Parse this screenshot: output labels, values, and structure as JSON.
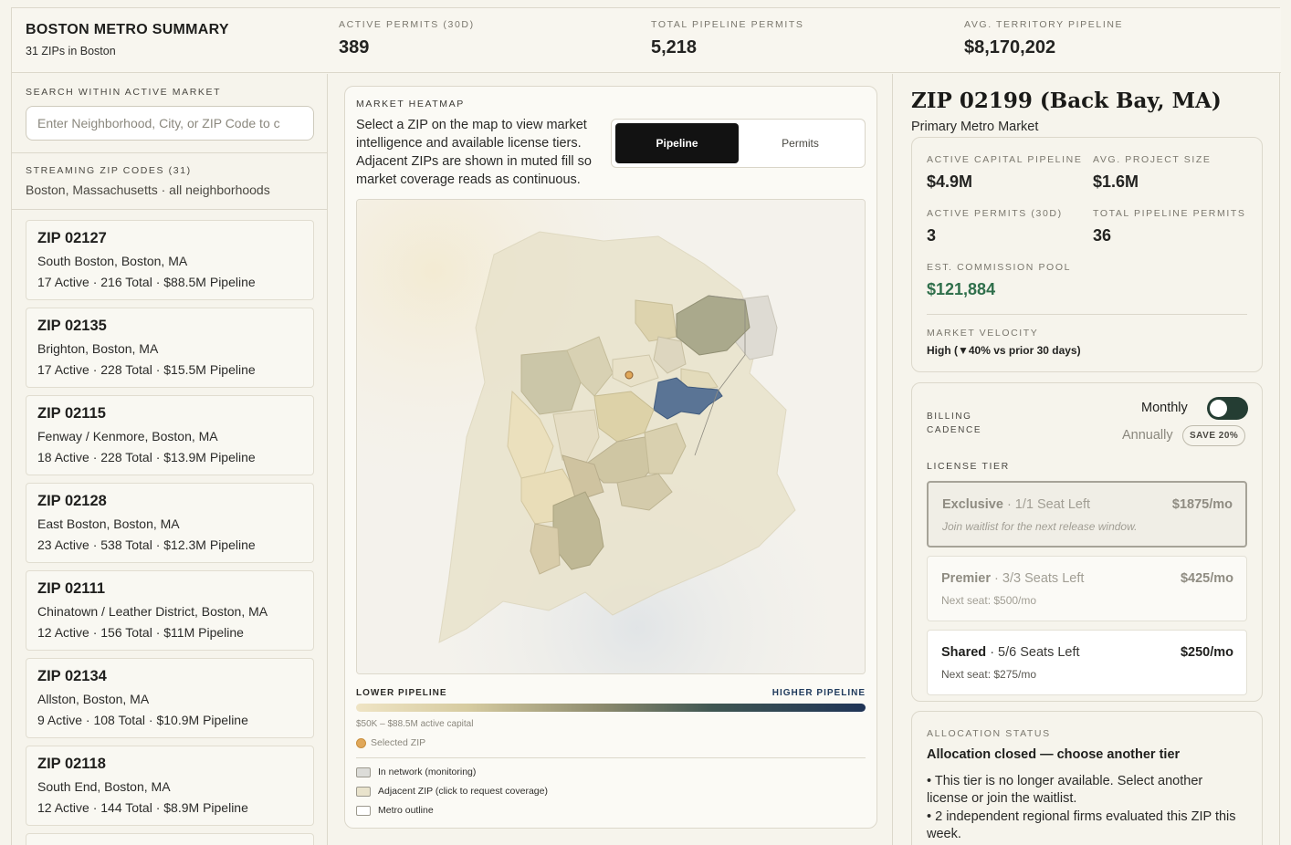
{
  "summary": {
    "title": "BOSTON METRO SUMMARY",
    "subtitle": "31 ZIPs in Boston",
    "stats": [
      {
        "label": "ACTIVE PERMITS (30D)",
        "value": "389"
      },
      {
        "label": "TOTAL PIPELINE PERMITS",
        "value": "5,218"
      },
      {
        "label": "AVG. TERRITORY PIPELINE",
        "value": "$8,170,202"
      }
    ]
  },
  "search": {
    "label": "SEARCH WITHIN ACTIVE MARKET",
    "placeholder": "Enter Neighborhood, City, or ZIP Code to c"
  },
  "streaming": {
    "label": "STREAMING ZIP CODES (31)",
    "subtitle": "Boston, Massachusetts · all neighborhoods"
  },
  "zip_list": [
    {
      "title": "ZIP 02127",
      "location": "South Boston, Boston, MA",
      "stats": "17 Active · 216 Total · $88.5M Pipeline"
    },
    {
      "title": "ZIP 02135",
      "location": "Brighton, Boston, MA",
      "stats": "17 Active · 228 Total · $15.5M Pipeline"
    },
    {
      "title": "ZIP 02115",
      "location": "Fenway / Kenmore, Boston, MA",
      "stats": "18 Active · 228 Total · $13.9M Pipeline"
    },
    {
      "title": "ZIP 02128",
      "location": "East Boston, Boston, MA",
      "stats": "23 Active · 538 Total · $12.3M Pipeline"
    },
    {
      "title": "ZIP 02111",
      "location": "Chinatown / Leather District, Boston, MA",
      "stats": "12 Active · 156 Total · $11M Pipeline"
    },
    {
      "title": "ZIP 02134",
      "location": "Allston, Boston, MA",
      "stats": "9 Active · 108 Total · $10.9M Pipeline"
    },
    {
      "title": "ZIP 02118",
      "location": "South End, Boston, MA",
      "stats": "12 Active · 144 Total · $8.9M Pipeline"
    }
  ],
  "heatmap": {
    "label": "MARKET HEATMAP",
    "description": "Select a ZIP on the map to view market intelligence and available license tiers. Adjacent ZIPs are shown in muted fill so market coverage reads as continuous.",
    "toggle": {
      "active": "Pipeline",
      "inactive": "Permits"
    },
    "legend_low": "LOWER PIPELINE",
    "legend_high": "HIGHER PIPELINE",
    "range": "$50K – $88.5M active capital",
    "selected_zip": "Selected ZIP",
    "keys": [
      "In network (monitoring)",
      "Adjacent ZIP (click to request coverage)",
      "Metro outline"
    ],
    "colors": {
      "selected": "#5a7495",
      "adjacent": "#e9e3cc",
      "low": "#efe4c4",
      "high": "#1f3456"
    }
  },
  "detail": {
    "zip_title": "ZIP 02199 (Back Bay, MA)",
    "subtitle": "Primary Metro Market",
    "metrics": {
      "capital_label": "ACTIVE CAPITAL PIPELINE",
      "capital_value": "$4.9M",
      "avg_label": "AVG. PROJECT SIZE",
      "avg_value": "$1.6M",
      "permits_label": "ACTIVE PERMITS (30D)",
      "permits_value": "3",
      "total_label": "TOTAL PIPELINE PERMITS",
      "total_value": "36",
      "commission_label": "EST. COMMISSION POOL",
      "commission_value": "$121,884",
      "velocity_label": "MARKET VELOCITY",
      "velocity_value": "High (▼40% vs prior 30 days)"
    },
    "billing": {
      "label": "BILLING CADENCE",
      "monthly": "Monthly",
      "annually": "Annually",
      "save": "SAVE 20%"
    },
    "license_label": "LICENSE TIER",
    "tiers": [
      {
        "name": "Exclusive",
        "seats": "· 1/1 Seat Left",
        "price": "$1875/mo",
        "note": "Join waitlist for the next release window."
      },
      {
        "name": "Premier",
        "seats": "· 3/3 Seats Left",
        "price": "$425/mo",
        "note": "Next seat: $500/mo"
      },
      {
        "name": "Shared",
        "seats": "· 5/6 Seats Left",
        "price": "$250/mo",
        "note": "Next seat: $275/mo"
      }
    ],
    "allocation": {
      "label": "ALLOCATION STATUS",
      "title": "Allocation closed — choose another tier",
      "bullets": [
        "• This tier is no longer available. Select another license or join the waitlist.",
        "• 2 independent regional firms evaluated this ZIP this week."
      ]
    }
  }
}
